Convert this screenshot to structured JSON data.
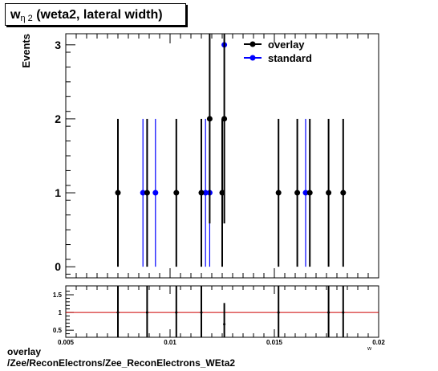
{
  "title": {
    "main_prefix": "w",
    "subscript": "η 2",
    "main_suffix": " (weta2, lateral width)"
  },
  "footer": {
    "line1": "overlay",
    "line2": "/Zee/ReconElectrons/Zee_ReconElectrons_WEta2"
  },
  "colors": {
    "overlay": "#000000",
    "standard": "#0000ff",
    "ratio_line": "#cc0000"
  },
  "chart_data": [
    {
      "type": "scatter",
      "ylabel": "Events",
      "xlim": [
        0.005,
        0.02
      ],
      "ylim": [
        -0.15,
        3.15
      ],
      "yticks": [
        0,
        1,
        2,
        3
      ],
      "legend": {
        "placement": "top-right",
        "entries": [
          "overlay",
          "standard"
        ]
      },
      "series": [
        {
          "name": "overlay",
          "x": [
            0.0075,
            0.0089,
            0.0103,
            0.0115,
            0.0119,
            0.0125,
            0.0126,
            0.0152,
            0.0161,
            0.0167,
            0.0176,
            0.0183
          ],
          "y": [
            1,
            1,
            1,
            1,
            2,
            1,
            2,
            1,
            1,
            1,
            1,
            1
          ],
          "yerr": [
            1,
            1,
            1,
            1,
            1.414,
            1,
            1.414,
            1,
            1,
            1,
            1,
            1
          ]
        },
        {
          "name": "standard",
          "x": [
            0.0087,
            0.0093,
            0.0117,
            0.0119,
            0.0126,
            0.0165
          ],
          "y": [
            1,
            1,
            1,
            1,
            3,
            1
          ],
          "yerr": [
            1,
            1,
            1,
            1,
            1.732,
            1
          ]
        }
      ]
    },
    {
      "type": "scatter",
      "xlabel": "w",
      "xlim": [
        0.005,
        0.02
      ],
      "ylim": [
        0.3,
        1.75
      ],
      "xticks": [
        0.005,
        0.01,
        0.015,
        0.02
      ],
      "xtick_labels": [
        "0.005",
        "0.01",
        "0.015",
        "0.02"
      ],
      "yticks": [
        0.5,
        1,
        1.5
      ],
      "ytick_labels": [
        "0.5",
        "1",
        "1.5"
      ],
      "reference_line": 1,
      "x": [
        0.0075,
        0.0089,
        0.0103,
        0.0115,
        0.0126,
        0.0152,
        0.0176,
        0.0183
      ],
      "y": [
        1,
        1,
        1,
        1,
        0.667,
        1,
        1,
        1
      ],
      "yerr": [
        1.414,
        1.414,
        1.414,
        1.414,
        0.6,
        1.414,
        1.414,
        1.414
      ]
    }
  ]
}
